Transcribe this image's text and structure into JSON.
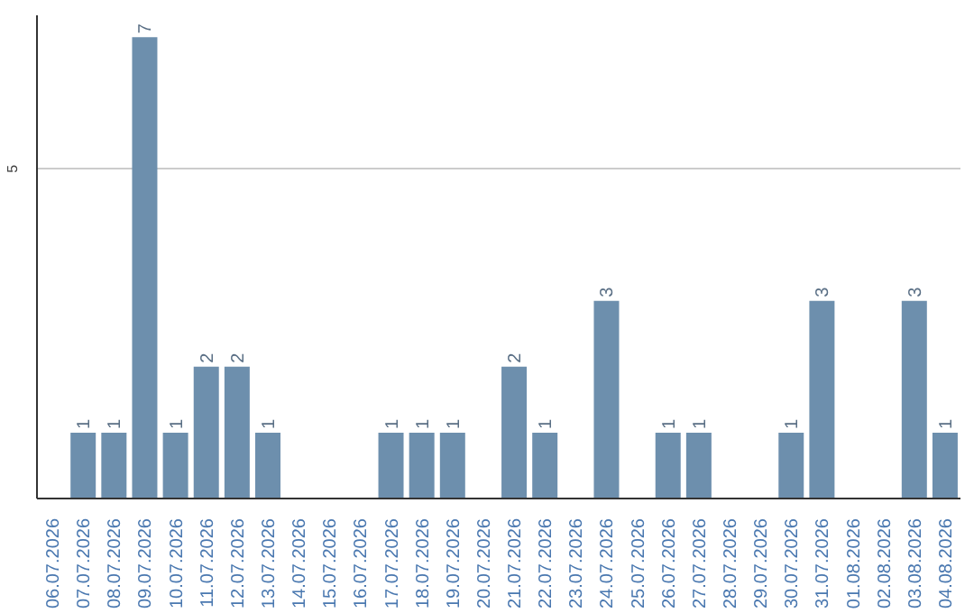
{
  "chart_data": {
    "type": "bar",
    "categories": [
      "06.07.2026",
      "07.07.2026",
      "08.07.2026",
      "09.07.2026",
      "10.07.2026",
      "11.07.2026",
      "12.07.2026",
      "13.07.2026",
      "14.07.2026",
      "15.07.2026",
      "16.07.2026",
      "17.07.2026",
      "18.07.2026",
      "19.07.2026",
      "20.07.2026",
      "21.07.2026",
      "22.07.2026",
      "23.07.2026",
      "24.07.2026",
      "25.07.2026",
      "26.07.2026",
      "27.07.2026",
      "28.07.2026",
      "29.07.2026",
      "30.07.2026",
      "31.07.2026",
      "01.08.2026",
      "02.08.2026",
      "03.08.2026",
      "04.08.2026"
    ],
    "values": [
      0,
      1,
      1,
      7,
      1,
      2,
      2,
      1,
      0,
      0,
      0,
      1,
      1,
      1,
      0,
      2,
      1,
      0,
      3,
      0,
      1,
      1,
      0,
      0,
      1,
      3,
      0,
      0,
      3,
      1
    ],
    "color": "#6d8fad",
    "value_labels": [
      null,
      "1",
      "1",
      "7",
      "1",
      "2",
      "2",
      "1",
      null,
      null,
      null,
      "1",
      "1",
      "1",
      null,
      "2",
      "1",
      null,
      "3",
      null,
      "1",
      "1",
      null,
      null,
      "1",
      "3",
      null,
      null,
      "3",
      "1"
    ],
    "ylim": [
      0,
      7.33
    ],
    "yticks": [
      5
    ],
    "grid": "y"
  }
}
